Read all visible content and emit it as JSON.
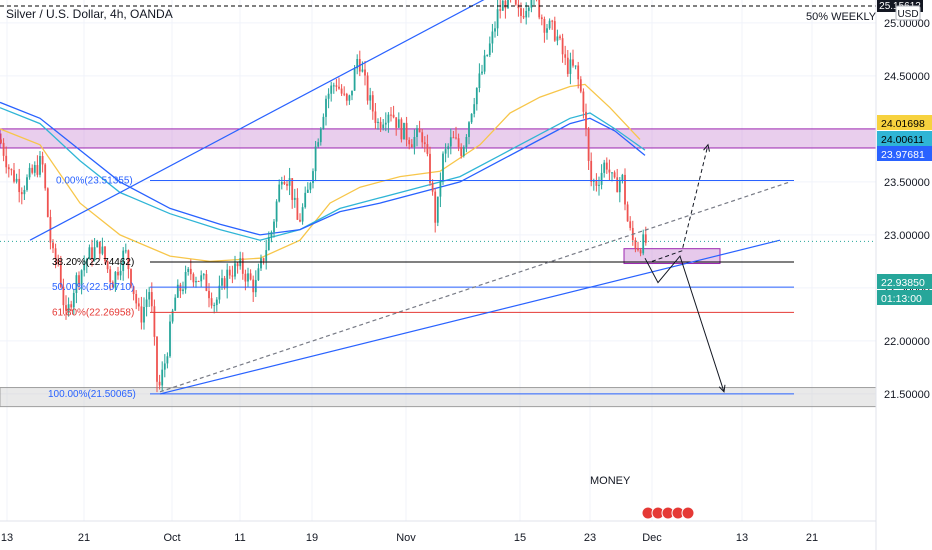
{
  "header": {
    "symbol_title": "Silver / U.S. Dollar, 4h, OANDA",
    "currency": "USD",
    "annotation": "50% WEEKLY"
  },
  "price_axis": {
    "ticks": [
      "25.00000",
      "24.50000",
      "23.50000",
      "23.00000",
      "22.50000",
      "22.00000",
      "21.50000"
    ],
    "top_badge": "25.15612",
    "badges": [
      {
        "text": "24.01698",
        "color": "#f7d23e",
        "text_color": "#000000"
      },
      {
        "text": "24.00611",
        "color": "#2fb5d6",
        "text_color": "#000000"
      },
      {
        "text": "23.97681",
        "color": "#2962ff",
        "text_color": "#ffffff"
      },
      {
        "text": "22.93850",
        "color": "#26a69a",
        "text_color": "#ffffff"
      },
      {
        "text": "01:13:00",
        "color": "#26a69a",
        "text_color": "#ffffff"
      }
    ]
  },
  "time_axis": {
    "labels": [
      "13",
      "21",
      "Oct",
      "11",
      "19",
      "Nov",
      "15",
      "23",
      "Dec",
      "13",
      "21"
    ]
  },
  "fibonacci": {
    "levels": [
      {
        "label": "0.00%(23.51355)",
        "price": 23.51355,
        "color": "#2962ff"
      },
      {
        "label": "38.20%(22.74462)",
        "price": 22.74462,
        "color": "#000000"
      },
      {
        "label": "50.00%(22.50710)",
        "price": 22.5071,
        "color": "#2962ff"
      },
      {
        "label": "61.80%(22.26958)",
        "price": 22.26958,
        "color": "#e53935"
      },
      {
        "label": "100.00%(21.50065)",
        "price": 21.50065,
        "color": "#2962ff"
      }
    ]
  },
  "zones": [
    {
      "name": "resistance",
      "from": 23.82,
      "to": 24.0,
      "color": "#ce93d8"
    },
    {
      "name": "support",
      "from": 21.38,
      "to": 21.56,
      "color": "#cfcfcf"
    }
  ],
  "chart_labels": {
    "target": "MONEY"
  },
  "colors": {
    "up": "#26a69a",
    "down": "#ef5350",
    "trend": "#2962ff",
    "ma_fast": "#f7c64a",
    "ma_mid": "#2fb5d6",
    "ma_slow": "#2962ff"
  },
  "chart_data": {
    "type": "candlestick",
    "ylim": [
      21.35,
      25.15
    ],
    "current_price": 22.9385,
    "dates": [
      "Sep 13",
      "Sep 21",
      "Oct",
      "Oct 11",
      "Oct 19",
      "Nov",
      "Nov 15",
      "Nov 23",
      "Dec",
      "Dec 13",
      "Dec 21"
    ],
    "path": [
      [
        0,
        23.9
      ],
      [
        10,
        23.6
      ],
      [
        22,
        23.45
      ],
      [
        30,
        23.55
      ],
      [
        42,
        23.7
      ],
      [
        52,
        22.8
      ],
      [
        58,
        22.75
      ],
      [
        66,
        22.2
      ],
      [
        75,
        22.55
      ],
      [
        88,
        22.8
      ],
      [
        100,
        22.9
      ],
      [
        112,
        22.55
      ],
      [
        125,
        22.85
      ],
      [
        140,
        22.2
      ],
      [
        150,
        22.5
      ],
      [
        158,
        21.5
      ],
      [
        166,
        21.85
      ],
      [
        175,
        22.4
      ],
      [
        190,
        22.65
      ],
      [
        205,
        22.55
      ],
      [
        215,
        22.35
      ],
      [
        228,
        22.65
      ],
      [
        240,
        22.7
      ],
      [
        255,
        22.5
      ],
      [
        265,
        22.85
      ],
      [
        272,
        23.05
      ],
      [
        282,
        23.6
      ],
      [
        290,
        23.5
      ],
      [
        298,
        23.1
      ],
      [
        308,
        23.4
      ],
      [
        316,
        23.85
      ],
      [
        326,
        24.3
      ],
      [
        336,
        24.45
      ],
      [
        348,
        24.2
      ],
      [
        358,
        24.7
      ],
      [
        368,
        24.3
      ],
      [
        378,
        24.05
      ],
      [
        390,
        24.2
      ],
      [
        400,
        24.0
      ],
      [
        412,
        23.9
      ],
      [
        422,
        23.95
      ],
      [
        430,
        23.55
      ],
      [
        436,
        23.1
      ],
      [
        442,
        23.7
      ],
      [
        452,
        23.9
      ],
      [
        462,
        23.8
      ],
      [
        474,
        24.3
      ],
      [
        484,
        24.6
      ],
      [
        492,
        24.85
      ],
      [
        498,
        25.1
      ],
      [
        508,
        25.25
      ],
      [
        520,
        25.05
      ],
      [
        532,
        25.3
      ],
      [
        544,
        25.0
      ],
      [
        556,
        24.9
      ],
      [
        566,
        24.6
      ],
      [
        576,
        24.55
      ],
      [
        584,
        24.2
      ],
      [
        590,
        23.5
      ],
      [
        597,
        23.5
      ],
      [
        606,
        23.7
      ],
      [
        614,
        23.45
      ],
      [
        622,
        23.55
      ],
      [
        628,
        23.1
      ],
      [
        632,
        22.95
      ],
      [
        638,
        22.9
      ],
      [
        645,
        22.93
      ]
    ],
    "moving_averages": [
      {
        "name": "MA fast",
        "points": [
          [
            0,
            24.0
          ],
          [
            40,
            23.85
          ],
          [
            80,
            23.3
          ],
          [
            120,
            23.0
          ],
          [
            170,
            22.8
          ],
          [
            210,
            22.75
          ],
          [
            260,
            22.78
          ],
          [
            300,
            22.95
          ],
          [
            330,
            23.3
          ],
          [
            360,
            23.45
          ],
          [
            400,
            23.55
          ],
          [
            440,
            23.6
          ],
          [
            480,
            23.85
          ],
          [
            510,
            24.15
          ],
          [
            540,
            24.3
          ],
          [
            570,
            24.4
          ],
          [
            585,
            24.42
          ],
          [
            610,
            24.2
          ],
          [
            640,
            23.9
          ]
        ]
      },
      {
        "name": "MA mid",
        "points": [
          [
            0,
            24.2
          ],
          [
            40,
            24.05
          ],
          [
            80,
            23.7
          ],
          [
            120,
            23.4
          ],
          [
            170,
            23.2
          ],
          [
            220,
            23.05
          ],
          [
            260,
            22.95
          ],
          [
            300,
            23.05
          ],
          [
            340,
            23.25
          ],
          [
            380,
            23.35
          ],
          [
            420,
            23.45
          ],
          [
            460,
            23.55
          ],
          [
            500,
            23.75
          ],
          [
            540,
            23.95
          ],
          [
            570,
            24.1
          ],
          [
            590,
            24.15
          ],
          [
            615,
            24.0
          ],
          [
            645,
            23.8
          ]
        ]
      },
      {
        "name": "MA slow",
        "points": [
          [
            0,
            24.25
          ],
          [
            40,
            24.1
          ],
          [
            80,
            23.8
          ],
          [
            120,
            23.5
          ],
          [
            170,
            23.25
          ],
          [
            220,
            23.1
          ],
          [
            260,
            23.0
          ],
          [
            300,
            23.05
          ],
          [
            340,
            23.22
          ],
          [
            380,
            23.3
          ],
          [
            420,
            23.4
          ],
          [
            460,
            23.5
          ],
          [
            500,
            23.7
          ],
          [
            540,
            23.9
          ],
          [
            570,
            24.05
          ],
          [
            590,
            24.1
          ],
          [
            615,
            23.98
          ],
          [
            645,
            23.75
          ]
        ]
      }
    ],
    "trendlines": [
      {
        "name": "upper-channel",
        "from": [
          30,
          22.95
        ],
        "to": [
          490,
          25.25
        ],
        "style": "solid"
      },
      {
        "name": "lower-trend",
        "from": [
          160,
          21.5
        ],
        "to": [
          780,
          22.95
        ],
        "style": "solid"
      },
      {
        "name": "mid-trend",
        "from": [
          160,
          21.52
        ],
        "to": [
          790,
          23.5
        ],
        "style": "dashed"
      }
    ],
    "projections": [
      {
        "name": "bullish-path",
        "points": [
          [
            652,
            22.75
          ],
          [
            682,
            22.85
          ],
          [
            708,
            23.85
          ]
        ],
        "style": "dashed"
      },
      {
        "name": "bearish-path",
        "points": [
          [
            645,
            22.78
          ],
          [
            658,
            22.55
          ],
          [
            680,
            22.8
          ],
          [
            724,
            21.52
          ]
        ],
        "style": "solid"
      }
    ]
  }
}
